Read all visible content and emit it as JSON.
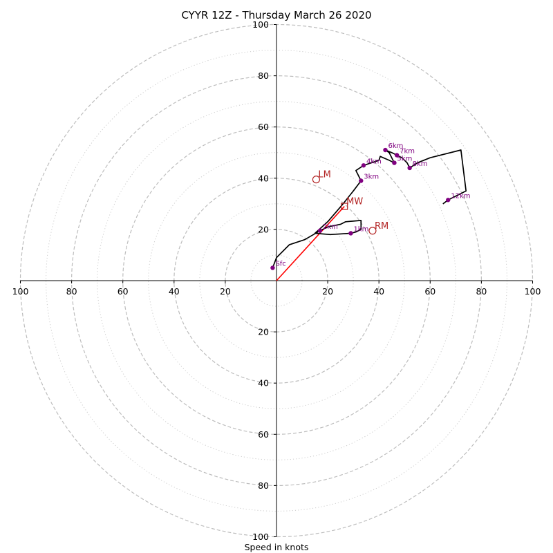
{
  "chart_data": {
    "type": "line",
    "title": "CYYR 12Z - Thursday March 26 2020",
    "xlabel": "Speed in knots",
    "ylabel": "",
    "xlim": [
      -100,
      100
    ],
    "ylim": [
      -100,
      100
    ],
    "grid": true,
    "ring_solid_dashed": [
      20,
      40,
      60,
      80,
      100
    ],
    "ring_dotted": [
      10,
      30,
      50,
      70,
      90
    ],
    "x_ticks": [
      {
        "value": -100,
        "label": "100"
      },
      {
        "value": -80,
        "label": "80"
      },
      {
        "value": -60,
        "label": "60"
      },
      {
        "value": -40,
        "label": "40"
      },
      {
        "value": -20,
        "label": "20"
      },
      {
        "value": 20,
        "label": "20"
      },
      {
        "value": 40,
        "label": "40"
      },
      {
        "value": 60,
        "label": "60"
      },
      {
        "value": 80,
        "label": "80"
      },
      {
        "value": 100,
        "label": "100"
      }
    ],
    "y_ticks": [
      {
        "value": 100,
        "label": "100"
      },
      {
        "value": 80,
        "label": "80"
      },
      {
        "value": 60,
        "label": "60"
      },
      {
        "value": 40,
        "label": "40"
      },
      {
        "value": 20,
        "label": "20"
      },
      {
        "value": -20,
        "label": "20"
      },
      {
        "value": -40,
        "label": "40"
      },
      {
        "value": -60,
        "label": "60"
      },
      {
        "value": -80,
        "label": "80"
      },
      {
        "value": -100,
        "label": "100"
      }
    ],
    "hodograph_line": {
      "color": "#000000",
      "points": [
        [
          -1.5,
          5
        ],
        [
          0,
          9
        ],
        [
          5,
          14
        ],
        [
          11,
          16
        ],
        [
          17,
          19.5
        ],
        [
          20,
          21
        ],
        [
          25,
          22
        ],
        [
          27,
          23
        ],
        [
          33,
          23.5
        ],
        [
          33,
          20
        ],
        [
          31,
          19
        ],
        [
          29,
          18.5
        ],
        [
          21,
          18
        ],
        [
          15,
          18.5
        ],
        [
          20,
          23
        ],
        [
          26,
          30
        ],
        [
          30,
          35
        ],
        [
          33,
          39
        ],
        [
          31,
          43
        ],
        [
          34,
          45
        ],
        [
          37,
          46
        ],
        [
          40,
          47
        ],
        [
          40.5,
          48.5
        ],
        [
          44,
          47
        ],
        [
          46,
          46
        ],
        [
          45,
          48
        ],
        [
          44,
          50
        ],
        [
          42.5,
          51
        ],
        [
          45,
          50
        ],
        [
          47,
          49
        ],
        [
          49,
          48
        ],
        [
          51,
          46
        ],
        [
          52,
          44
        ],
        [
          55,
          46
        ],
        [
          60,
          48
        ],
        [
          72,
          51
        ],
        [
          74,
          35
        ],
        [
          67,
          31.5
        ],
        [
          65,
          30
        ]
      ]
    },
    "height_markers": {
      "color": "#800080",
      "points": [
        {
          "label": "Sfc",
          "x": -1.5,
          "y": 5
        },
        {
          "label": "1km",
          "x": 29,
          "y": 18.5
        },
        {
          "label": "2km",
          "x": 17,
          "y": 19.5
        },
        {
          "label": "3km",
          "x": 33,
          "y": 39
        },
        {
          "label": "4km",
          "x": 34,
          "y": 45
        },
        {
          "label": "5km",
          "x": 46,
          "y": 46
        },
        {
          "label": "6km",
          "x": 42.5,
          "y": 51
        },
        {
          "label": "7km",
          "x": 47,
          "y": 49
        },
        {
          "label": "8km",
          "x": 52,
          "y": 44
        },
        {
          "label": "12km",
          "x": 67,
          "y": 31.5
        }
      ]
    },
    "motion_vector": {
      "color": "#ff0000",
      "from": [
        0,
        0
      ],
      "to": [
        26.5,
        29
      ]
    },
    "storm_motions": [
      {
        "label": "LM",
        "x": 15.5,
        "y": 39.5,
        "marker": "circle"
      },
      {
        "label": "MW",
        "x": 26.5,
        "y": 29,
        "marker": "square"
      },
      {
        "label": "RM",
        "x": 37.5,
        "y": 19.5,
        "marker": "circle"
      }
    ],
    "motion_color": "#b22222"
  }
}
